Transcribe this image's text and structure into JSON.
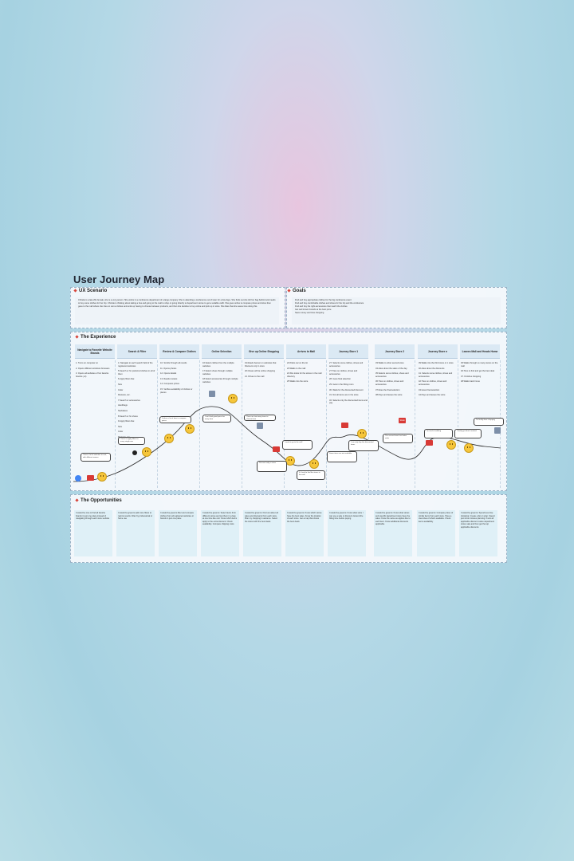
{
  "title": "User Journey Map",
  "ux_scenario": {
    "heading": "UX Scenario",
    "text": "Christie is a late 20s female, she is a very person. She works in a conference department of a large company. She is attending a conference out of town for a few days. She finds out she left her bag behind and needs to buy some clothes for her trip. Christie is thinking about taking a bus and going to the mall to shop or going directly to department stores to get a suitable outfit. She goes online to compare prices and sizes then goes to the mall where she tries on some clothes and ends up having to choose between products, and then she decides to buy online and pick up in store. She likes that she saves time doing this."
  },
  "goals": {
    "heading": "Goals",
    "items": [
      "Find and buy appropriate clothes for the big conference event",
      "Find and buy comfortable clothes and shoes for the trip and the conference",
      "Find and buy the right accessories that match the clothes",
      "Get well known brands at the best price",
      "Save money and time shopping"
    ]
  },
  "experience": {
    "heading": "The Experience",
    "stages": [
      {
        "name": "Navigate to Favorite Website Brands",
        "steps": [
          "1. Turns on computer on",
          "2. Opens different windows browsers",
          "3. Opens all websites of her favorite brands (+4)"
        ]
      },
      {
        "name": "Search & Filter",
        "steps": [
          "4. Navigate to each search field of the registered websites",
          "5.Search or for preferred clothes in all of them",
          "6.Apply filters like:",
          "Size",
          "Color",
          "Reviews, etc.",
          "7.Search or accessories",
          "Handbags",
          "Necklaces",
          "8.Search or for shoes",
          "9.Apply filters like:",
          "Size",
          "Color",
          "Reviews, etc."
        ]
      },
      {
        "name": "Review & Compare Clothes",
        "steps": [
          "10. Scrolls through all results",
          "11. Opens photos",
          "12. Opens details",
          "13. Reads reviews",
          "14. Compares prices",
          "15. Verifies availability of clothes or pieces"
        ]
      },
      {
        "name": "Online Selection",
        "steps": [
          "16.Select clothes from the multiple websites",
          "17.Select shoes through multiple websites",
          "18.Select accessories through multiple websites"
        ]
      },
      {
        "name": "Give up Online Shopping",
        "steps": [
          "19.Reads banner on websites that Discount only in store",
          "20.Closes all the online shopping",
          "21. Drives to the mall"
        ]
      },
      {
        "name": "Arrives to Mall",
        "steps": [
          "22.Parks car on the lot",
          "23.Walks to the mall",
          "24.She looks for the stores in the mall directory",
          "25.Walks into the store"
        ]
      },
      {
        "name": "Journey Store 1",
        "steps": [
          "27. Selects some clothes, shoes and accessories",
          "27.Tries on clothes, shoes and accessories",
          "28. Goes final selection",
          "29. Gets in the fitting room",
          "30. Waits for the discounted discount",
          "31. Not all items are in the store",
          "32. Selects only the discounted items and pay"
        ]
      },
      {
        "name": "Journey Store 2",
        "steps": [
          "33.Walks to other second store",
          "34.Asks about the sales of the day",
          "35.Selects some clothes, shoes and accessories",
          "36.Tries on clothes, shoes and accessories",
          "37.Does the final selection",
          "38.Pays and leaves the store"
        ]
      },
      {
        "name": "Journey Store n",
        "steps": [
          "39.Walks into the third store or n store",
          "40.Asks about the discounts",
          "41. Selects some clothes, shoes and accessories",
          "42.Tries on clothes, shoes and accessories",
          "43.Goes final selection",
          "44.Pays and leaves the store"
        ]
      },
      {
        "name": "Leaves Mall and Heads Home",
        "steps": [
          "45.Walks through so many stores on the mall",
          "46.Tires to find and get the best deal",
          "47. Finishes shopping",
          "48.Walks back home"
        ]
      }
    ],
    "bubbles": [
      "I have a lot of websites to visit, with different names",
      "I have to apply filters to every single one",
      "It takes a lot of time to compare prices",
      "I can't find good prices for every item",
      "There are too many items to choose from",
      "Discount only in store",
      "I need to go to the mall",
      "It's hard to find the stores in the mall",
      "Some items are not available",
      "I can only buy the discounted items",
      "The second store has better sales",
      "I'm tired of walking",
      "I finally got what I wanted",
      "I'm finally done shopping"
    ],
    "sale_badge": "SALE"
  },
  "opportunities": {
    "heading": "The Opportunities",
    "items": [
      "It would be nice to find all favorite brands in just one place instead of navigating through each store website",
      "It would be great to add more filters to narrow results. Filter by professional or home use",
      "It would be great to filter and compare clothes from all registered websites or brands in just one place",
      "It would be great to: Select items from different stores and put them in a bag at one time like cart. Know which items apply to the extra discount. Check availability. Compare shipping costs",
      "It would be great to: Find out about all sales and discounts from each store. Plan my shopping in advance. Select the stores with the best deals",
      "It would be great to: Know which stores have the best sales. Know the location of each store. Get a map that shows the best deals",
      "It would be great to: Know what store I can use a sale or discount. Extend the fitting time before paying",
      "It would be great to: Know what stores and specific department store have the sales. Know the same as applies like to each item. Know additional discounts applicable",
      "It would be great to: Compare prices of similar items from each store. Have a clear idea of what's available. Check items availability",
      "It would be great to: Spend less time shopping. Create a list or wrap. Spend just a few minutes planning. Know all applicable discount codes department stores sale and then get the top applicable discounts"
    ]
  },
  "colors": {
    "accent": "#d8453b",
    "stage_bg": "#dbe9f4",
    "opp_bg": "#dff0f7",
    "curve": "#2b2b2b"
  },
  "icons": [
    "google-icon",
    "search-icon",
    "cart-icon",
    "bag-icon",
    "sale-tag-icon",
    "store-icon",
    "car-icon",
    "home-icon"
  ]
}
